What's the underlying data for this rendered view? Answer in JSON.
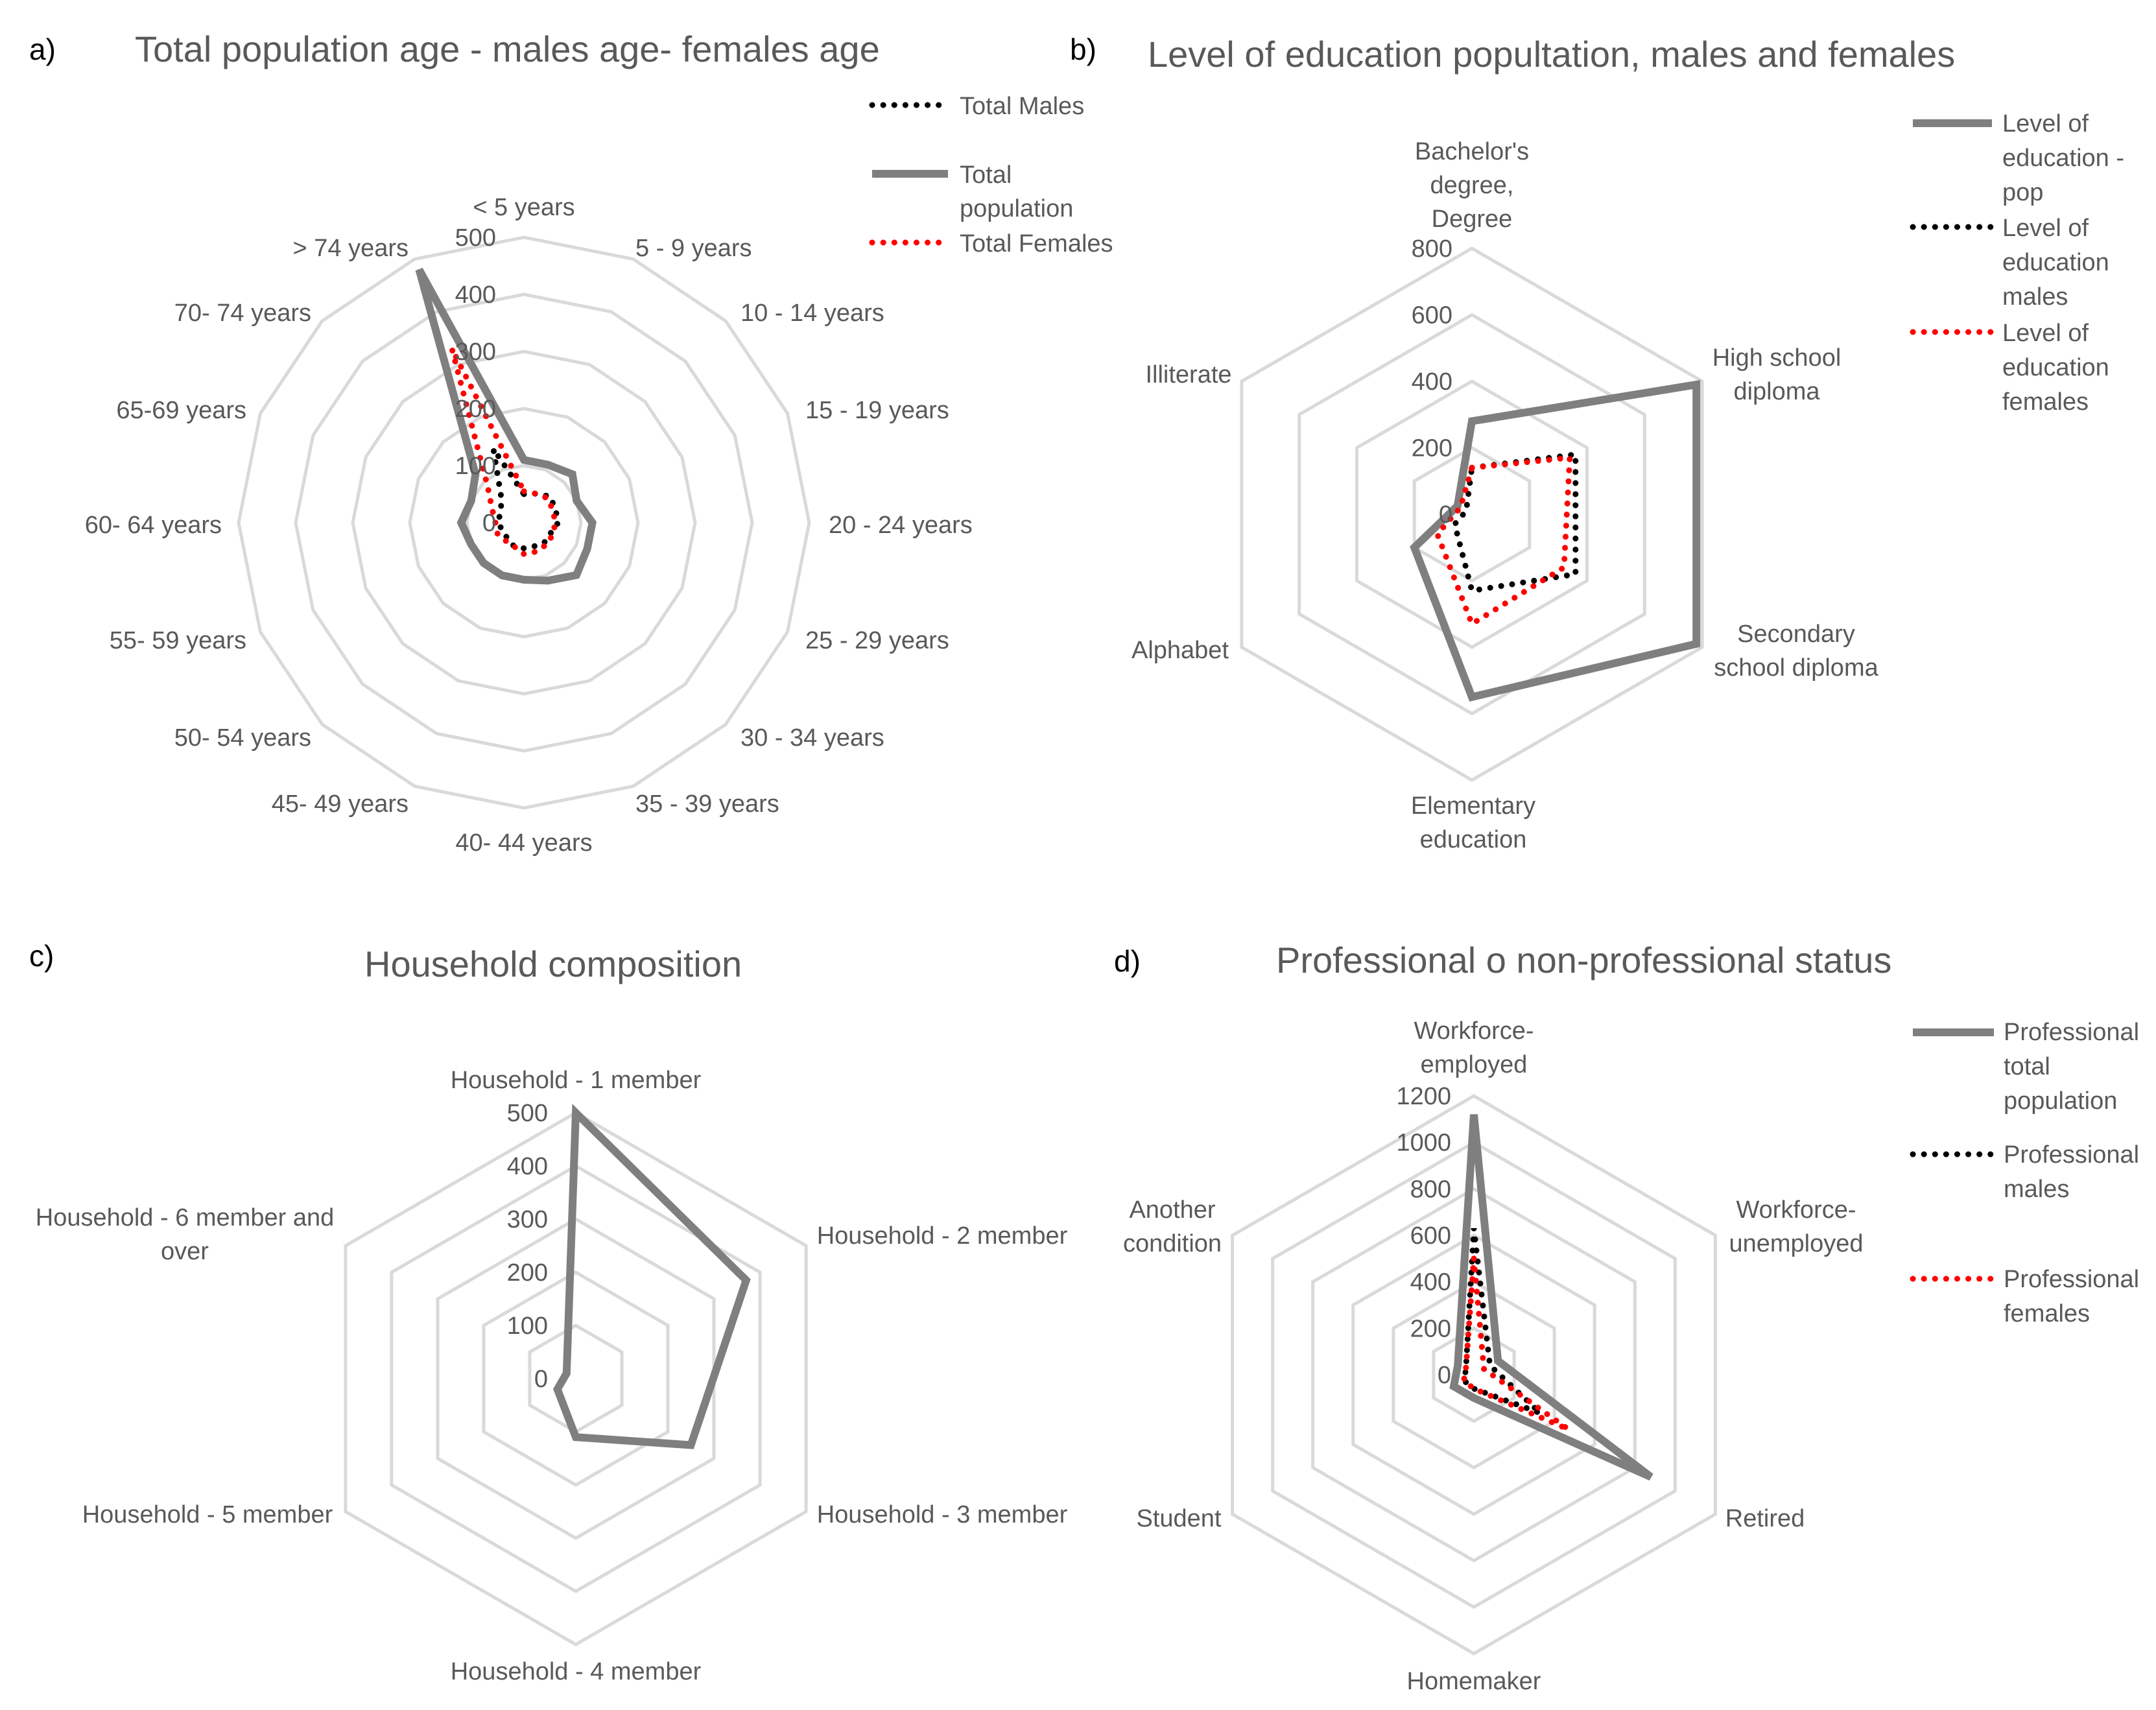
{
  "colors": {
    "total": "#7f7f7f",
    "males": "#000000",
    "females": "#ff0000",
    "grid": "#d9d9d9",
    "text": "#595959"
  },
  "chart_data": [
    {
      "id": "a",
      "type": "radar",
      "panel_letter": "a)",
      "title": "Total population age - males age- females age",
      "categories": [
        "< 5 years",
        "5 - 9 years",
        "10 - 14 years",
        "15 - 19 years",
        "20 - 24 years",
        "25 - 29 years",
        "30 - 34 years",
        "35 - 39 years",
        "40- 44 years",
        "45- 49 years",
        "50- 54 years",
        "55- 59 years",
        "60- 64 years",
        "65-69 years",
        "70- 74 years",
        "> 74 years"
      ],
      "ticks": [
        "0",
        "100",
        "200",
        "300",
        "400",
        "500"
      ],
      "rmax": 500,
      "series": [
        {
          "name": "Total Males",
          "style": "dot-black",
          "values": [
            50,
            55,
            65,
            60,
            60,
            50,
            50,
            45,
            45,
            45,
            40,
            40,
            45,
            45,
            55,
            140
          ]
        },
        {
          "name": "Total population",
          "style": "solid-gray",
          "values": [
            110,
            110,
            120,
            100,
            120,
            120,
            130,
            110,
            100,
            100,
            100,
            100,
            110,
            100,
            120,
            480
          ]
        },
        {
          "name": "Total Females",
          "style": "dot-red",
          "values": [
            55,
            55,
            60,
            55,
            55,
            55,
            55,
            55,
            55,
            45,
            45,
            50,
            50,
            60,
            90,
            330
          ]
        }
      ]
    },
    {
      "id": "b",
      "type": "radar",
      "panel_letter": "b)",
      "title": "Level of education popultation, males and females",
      "categories": [
        "Bachelor's degree, Degree",
        "High school diploma",
        "Secondary school diploma",
        "Elementary education",
        "Alphabet",
        "Illiterate"
      ],
      "category_lines": [
        [
          "Bachelor's",
          "degree,",
          "Degree"
        ],
        [
          "High school",
          "diploma"
        ],
        [
          "Secondary",
          "school diploma"
        ],
        [
          "Elementary",
          "education"
        ],
        [
          "Alphabet"
        ],
        [
          "Illiterate"
        ]
      ],
      "ticks": [
        "0",
        "200",
        "400",
        "600",
        "800"
      ],
      "rmax": 800,
      "series": [
        {
          "name": "Level of education - pop",
          "legend_lines": [
            "Level of",
            "education -",
            "pop"
          ],
          "style": "solid-gray",
          "values": [
            280,
            780,
            780,
            550,
            200,
            50
          ]
        },
        {
          "name": "Level of education males",
          "legend_lines": [
            "Level of",
            "education",
            "males"
          ],
          "style": "dot-black",
          "values": [
            140,
            360,
            360,
            230,
            60,
            20
          ]
        },
        {
          "name": "Level of education females",
          "legend_lines": [
            "Level of",
            "education",
            "females"
          ],
          "style": "dot-red",
          "values": [
            140,
            340,
            320,
            330,
            120,
            40
          ]
        }
      ]
    },
    {
      "id": "c",
      "type": "radar",
      "panel_letter": "c)",
      "title": "Household composition",
      "categories": [
        "Household - 1 member",
        "Household - 2 member",
        "Household - 3 member",
        "Household - 4 member",
        "Household - 5 member",
        "Household - 6 member and over"
      ],
      "category_lines": [
        [
          "Household - 1 member"
        ],
        [
          "Household - 2 member"
        ],
        [
          "Household - 3 member"
        ],
        [
          "Household - 4 member"
        ],
        [
          "Household - 5 member"
        ],
        [
          "Household - 6 member and",
          "over"
        ]
      ],
      "ticks": [
        "0",
        "100",
        "200",
        "300",
        "400",
        "500"
      ],
      "rmax": 500,
      "series": [
        {
          "name": "Household",
          "style": "solid-gray",
          "values": [
            500,
            370,
            250,
            110,
            40,
            20
          ]
        }
      ]
    },
    {
      "id": "d",
      "type": "radar",
      "panel_letter": "d)",
      "title": "Professional o non-professional status",
      "categories": [
        "Workforce-employed",
        "Workforce-unemployed",
        "Retired",
        "Homemaker",
        "Student",
        "Another condition"
      ],
      "category_lines": [
        [
          "Workforce-",
          "employed"
        ],
        [
          "Workforce-",
          "unemployed"
        ],
        [
          "Retired"
        ],
        [
          "Homemaker"
        ],
        [
          "Student"
        ],
        [
          "Another",
          "condition"
        ]
      ],
      "ticks": [
        "0",
        "200",
        "400",
        "600",
        "800",
        "1000",
        "1200"
      ],
      "rmax": 1200,
      "series": [
        {
          "name": "Professional total population",
          "legend_lines": [
            "Professional",
            "total",
            "population"
          ],
          "style": "solid-gray",
          "values": [
            1120,
            120,
            880,
            100,
            100,
            80
          ]
        },
        {
          "name": "Professional males",
          "legend_lines": [
            "Professional",
            "males"
          ],
          "style": "dot-black",
          "values": [
            630,
            80,
            330,
            60,
            50,
            40
          ]
        },
        {
          "name": "Professional females",
          "legend_lines": [
            "Professional",
            "females"
          ],
          "style": "dot-red",
          "values": [
            500,
            50,
            470,
            60,
            50,
            40
          ]
        }
      ]
    }
  ]
}
